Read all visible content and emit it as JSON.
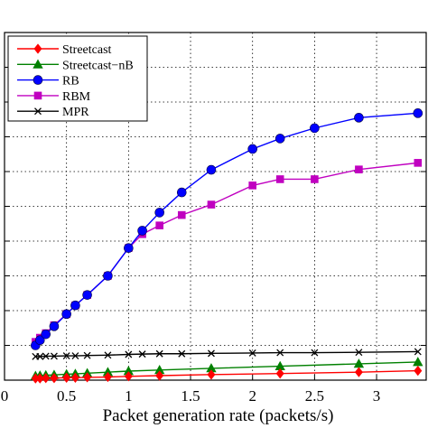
{
  "chart_data": {
    "type": "line",
    "title": "",
    "xlabel": "Packet generation rate (packets/s)",
    "ylabel": "",
    "xlim": [
      0,
      3.4
    ],
    "ylim": [
      0,
      1
    ],
    "x_ticks": [
      "0",
      "0.5",
      "1",
      "1.5",
      "2",
      "2.5",
      "3"
    ],
    "x_tick_values": [
      0,
      0.5,
      1,
      1.5,
      2,
      2.5,
      3
    ],
    "y_grid": [
      0.1,
      0.2,
      0.3,
      0.4,
      0.5,
      0.6,
      0.7,
      0.8,
      0.9
    ],
    "grid": "dotted",
    "legend_position": "top-left",
    "series": [
      {
        "name": "Streetcast",
        "color": "#ff0000",
        "marker": "diamond",
        "x": [
          0.25,
          0.286,
          0.333,
          0.4,
          0.5,
          0.571,
          0.667,
          0.833,
          1.0,
          1.25,
          1.667,
          2.222,
          2.857,
          3.333
        ],
        "y": [
          0.005,
          0.005,
          0.006,
          0.006,
          0.007,
          0.007,
          0.008,
          0.009,
          0.011,
          0.013,
          0.016,
          0.019,
          0.023,
          0.027
        ]
      },
      {
        "name": "Streetcast−nB",
        "color": "#008000",
        "marker": "triangle",
        "x": [
          0.25,
          0.286,
          0.333,
          0.4,
          0.5,
          0.571,
          0.667,
          0.833,
          1.0,
          1.25,
          1.667,
          2.222,
          2.857,
          3.333
        ],
        "y": [
          0.012,
          0.013,
          0.014,
          0.015,
          0.017,
          0.018,
          0.02,
          0.023,
          0.026,
          0.029,
          0.034,
          0.04,
          0.047,
          0.052
        ]
      },
      {
        "name": "RB",
        "color": "#0000ff",
        "marker": "circle",
        "x": [
          0.25,
          0.286,
          0.333,
          0.4,
          0.5,
          0.571,
          0.667,
          0.833,
          1.0,
          1.111,
          1.25,
          1.429,
          1.667,
          2.0,
          2.222,
          2.5,
          2.857,
          3.333
        ],
        "y": [
          0.1,
          0.115,
          0.132,
          0.155,
          0.19,
          0.215,
          0.245,
          0.3,
          0.38,
          0.43,
          0.482,
          0.54,
          0.605,
          0.665,
          0.695,
          0.725,
          0.755,
          0.768
        ]
      },
      {
        "name": "RBM",
        "color": "#c000c0",
        "marker": "square",
        "x": [
          0.25,
          0.286,
          0.333,
          0.4,
          0.5,
          0.571,
          0.667,
          0.833,
          1.0,
          1.111,
          1.25,
          1.429,
          1.667,
          2.0,
          2.222,
          2.5,
          2.857,
          3.333
        ],
        "y": [
          0.11,
          0.122,
          0.135,
          0.158,
          0.19,
          0.215,
          0.245,
          0.3,
          0.38,
          0.42,
          0.445,
          0.475,
          0.505,
          0.56,
          0.578,
          0.578,
          0.606,
          0.625
        ]
      },
      {
        "name": "MPR",
        "color": "#000000",
        "marker": "x",
        "x": [
          0.25,
          0.286,
          0.333,
          0.4,
          0.5,
          0.571,
          0.667,
          0.833,
          1.0,
          1.111,
          1.25,
          1.429,
          1.667,
          2.0,
          2.222,
          2.5,
          2.857,
          3.333
        ],
        "y": [
          0.068,
          0.068,
          0.069,
          0.069,
          0.07,
          0.07,
          0.071,
          0.072,
          0.074,
          0.075,
          0.076,
          0.076,
          0.077,
          0.078,
          0.079,
          0.079,
          0.08,
          0.082
        ]
      }
    ]
  }
}
